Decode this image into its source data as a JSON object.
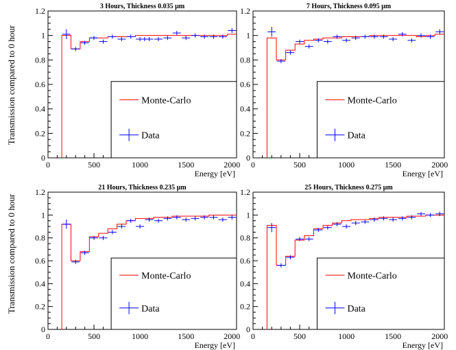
{
  "figure": {
    "ylabel": "Transmission compared to 0 hour",
    "xlabel": "Energy [eV]"
  },
  "legend": {
    "mc_label": "Monte-Carlo",
    "data_label": "Data"
  },
  "colors": {
    "mc": "#ff0000",
    "data": "#0000ff",
    "axis": "#000000"
  },
  "chart_data": [
    {
      "type": "line",
      "title": "3 Hours, Thickness 0.035 µm",
      "xlabel": "Energy [eV]",
      "ylabel": "Transmission compared to 0 hour",
      "xlim": [
        0,
        2050
      ],
      "ylim": [
        0,
        1.2
      ],
      "xticks": [
        "0",
        "500",
        "1000",
        "1500",
        "2000"
      ],
      "yticks": [
        "0",
        "0.2",
        "0.4",
        "0.6",
        "0.8",
        "1",
        "1.2"
      ],
      "legend": "inset-lower-right",
      "series": [
        {
          "name": "Monte-Carlo",
          "bin_edges": [
            150,
            250,
            350,
            450,
            550,
            650,
            750,
            850,
            950,
            1050,
            1150,
            1250,
            1350,
            1450,
            1550,
            1650,
            1750,
            1850,
            1950,
            2050
          ],
          "values": [
            1.0,
            0.89,
            0.95,
            0.98,
            0.98,
            0.99,
            0.99,
            0.99,
            1.0,
            1.0,
            1.0,
            1.0,
            1.0,
            1.0,
            1.0,
            1.0,
            1.0,
            1.0,
            1.01
          ]
        },
        {
          "name": "Data",
          "x": [
            200,
            300,
            400,
            500,
            600,
            700,
            800,
            900,
            1000,
            1050,
            1100,
            1200,
            1300,
            1400,
            1500,
            1600,
            1700,
            1800,
            1900,
            2000
          ],
          "y": [
            1.01,
            0.89,
            0.94,
            0.98,
            0.95,
            0.99,
            0.97,
            0.99,
            0.97,
            0.97,
            0.97,
            0.97,
            0.98,
            1.02,
            0.98,
            1.0,
            0.99,
            0.99,
            0.99,
            1.04
          ],
          "err": [
            0.04,
            0.015,
            0.015,
            0.015,
            0.015,
            0.015,
            0.015,
            0.015,
            0.015,
            0.015,
            0.015,
            0.015,
            0.015,
            0.015,
            0.015,
            0.015,
            0.015,
            0.015,
            0.015,
            0.02
          ]
        }
      ]
    },
    {
      "type": "line",
      "title": "7 Hours, Thickness 0.095 µm",
      "xlabel": "Energy [eV]",
      "ylabel": "",
      "xlim": [
        0,
        2050
      ],
      "ylim": [
        0,
        1.2
      ],
      "xticks": [
        "0",
        "500",
        "1000",
        "1500",
        "2000"
      ],
      "yticks": [
        "0",
        "0.2",
        "0.4",
        "0.6",
        "0.8",
        "1",
        "1.2"
      ],
      "legend": "inset-lower-right",
      "series": [
        {
          "name": "Monte-Carlo",
          "bin_edges": [
            150,
            250,
            350,
            450,
            550,
            650,
            750,
            850,
            950,
            1050,
            1150,
            1250,
            1350,
            1450,
            1550,
            1650,
            1750,
            1850,
            1950,
            2050
          ],
          "values": [
            0.98,
            0.8,
            0.88,
            0.93,
            0.96,
            0.97,
            0.98,
            0.98,
            0.99,
            0.99,
            0.99,
            1.0,
            1.0,
            1.0,
            1.0,
            1.0,
            0.99,
            1.0,
            1.01
          ]
        },
        {
          "name": "Data",
          "x": [
            200,
            300,
            400,
            500,
            600,
            700,
            800,
            900,
            1000,
            1100,
            1200,
            1300,
            1400,
            1500,
            1600,
            1700,
            1800,
            1900,
            2000
          ],
          "y": [
            1.03,
            0.79,
            0.86,
            0.95,
            0.91,
            0.96,
            0.95,
            0.99,
            0.96,
            0.98,
            0.99,
            0.99,
            0.99,
            0.97,
            1.01,
            0.96,
            1.0,
            0.99,
            1.03
          ],
          "err": [
            0.04,
            0.015,
            0.015,
            0.015,
            0.015,
            0.015,
            0.015,
            0.015,
            0.015,
            0.015,
            0.015,
            0.015,
            0.015,
            0.015,
            0.015,
            0.015,
            0.015,
            0.015,
            0.02
          ]
        }
      ]
    },
    {
      "type": "line",
      "title": "21 Hours, Thickness 0.235  µm",
      "xlabel": "Energy [eV]",
      "ylabel": "Transmission compared to 0 hour",
      "xlim": [
        0,
        2050
      ],
      "ylim": [
        0,
        1.2
      ],
      "xticks": [
        "0",
        "500",
        "1000",
        "1500",
        "2000"
      ],
      "yticks": [
        "0",
        "0.2",
        "0.4",
        "0.6",
        "0.8",
        "1",
        "1.2"
      ],
      "legend": "inset-lower-right",
      "series": [
        {
          "name": "Monte-Carlo",
          "bin_edges": [
            150,
            250,
            350,
            450,
            550,
            650,
            750,
            850,
            950,
            1050,
            1150,
            1250,
            1350,
            1450,
            1550,
            1650,
            1750,
            1850,
            1950,
            2050
          ],
          "values": [
            0.92,
            0.6,
            0.68,
            0.81,
            0.84,
            0.88,
            0.92,
            0.95,
            0.97,
            0.97,
            0.98,
            0.98,
            0.99,
            0.99,
            0.99,
            0.99,
            1.0,
            1.0,
            1.0
          ]
        },
        {
          "name": "Data",
          "x": [
            200,
            300,
            400,
            500,
            600,
            700,
            800,
            900,
            1000,
            1100,
            1200,
            1300,
            1400,
            1500,
            1600,
            1700,
            1800,
            1900,
            2000
          ],
          "y": [
            0.92,
            0.59,
            0.67,
            0.8,
            0.8,
            0.85,
            0.9,
            0.95,
            0.9,
            0.96,
            0.95,
            0.97,
            0.98,
            0.96,
            0.97,
            0.98,
            0.98,
            0.96,
            0.98
          ],
          "err": [
            0.04,
            0.015,
            0.015,
            0.015,
            0.015,
            0.015,
            0.015,
            0.015,
            0.015,
            0.015,
            0.015,
            0.015,
            0.015,
            0.015,
            0.015,
            0.015,
            0.015,
            0.015,
            0.02
          ]
        }
      ]
    },
    {
      "type": "line",
      "title": "25 Hours, Thickness 0.275  µm",
      "xlabel": "Energy [eV]",
      "ylabel": "",
      "xlim": [
        0,
        2050
      ],
      "ylim": [
        0,
        1.2
      ],
      "xticks": [
        "0",
        "500",
        "1000",
        "1500",
        "2000"
      ],
      "yticks": [
        "0",
        "0.2",
        "0.4",
        "0.6",
        "0.8",
        "1",
        "1.2"
      ],
      "legend": "inset-lower-right",
      "series": [
        {
          "name": "Monte-Carlo",
          "bin_edges": [
            150,
            250,
            350,
            450,
            550,
            650,
            750,
            850,
            950,
            1050,
            1150,
            1250,
            1350,
            1450,
            1550,
            1650,
            1750,
            1850,
            1950,
            2050
          ],
          "values": [
            0.91,
            0.56,
            0.64,
            0.78,
            0.82,
            0.88,
            0.91,
            0.93,
            0.95,
            0.96,
            0.96,
            0.97,
            0.98,
            0.98,
            0.98,
            0.99,
            0.99,
            1.0,
            1.0
          ]
        },
        {
          "name": "Data",
          "x": [
            200,
            300,
            400,
            500,
            600,
            700,
            800,
            900,
            1000,
            1100,
            1200,
            1300,
            1400,
            1500,
            1600,
            1700,
            1800,
            1900,
            2000
          ],
          "y": [
            0.89,
            0.56,
            0.63,
            0.79,
            0.79,
            0.87,
            0.89,
            0.92,
            0.9,
            0.93,
            0.94,
            0.96,
            0.97,
            0.96,
            0.97,
            0.98,
            1.01,
            1.0,
            1.01
          ],
          "err": [
            0.04,
            0.015,
            0.015,
            0.015,
            0.015,
            0.015,
            0.015,
            0.015,
            0.015,
            0.015,
            0.015,
            0.015,
            0.015,
            0.015,
            0.015,
            0.015,
            0.015,
            0.015,
            0.02
          ]
        }
      ]
    }
  ]
}
